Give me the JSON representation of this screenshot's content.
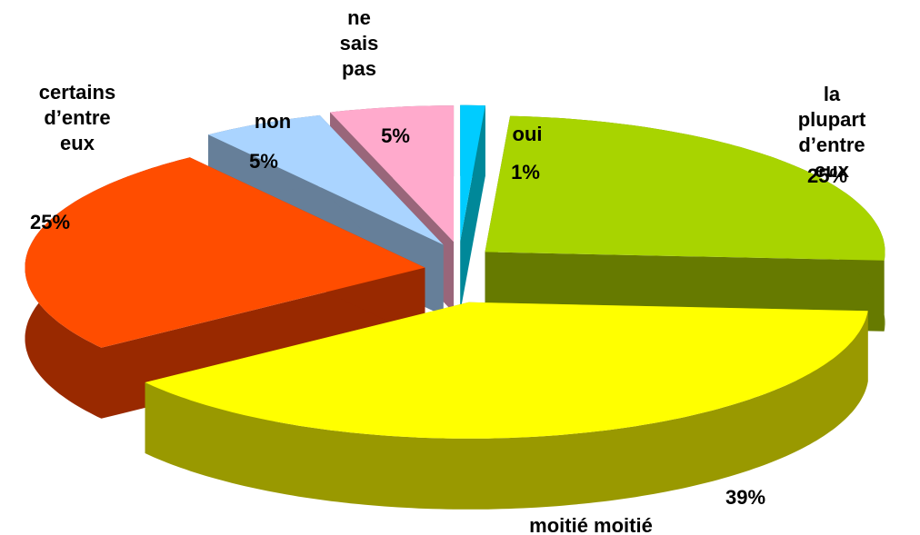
{
  "chart_data": {
    "type": "pie3d",
    "categories": [
      "oui",
      "la plupart\nd’entre eux",
      "moitié moitié",
      "certains\nd’entre\neux",
      "non",
      "ne\nsais\npas"
    ],
    "values": [
      1,
      25,
      39,
      25,
      5,
      5
    ],
    "value_labels": [
      "1%",
      "25%",
      "39%",
      "25%",
      "5%",
      "5%"
    ],
    "colors": [
      "#00ccff",
      "#a8d400",
      "#ffff00",
      "#ff4d00",
      "#aad4ff",
      "#ffaacc"
    ],
    "side_colors": [
      "#008899",
      "#667a00",
      "#999900",
      "#992900",
      "#667f99",
      "#99667a"
    ]
  }
}
